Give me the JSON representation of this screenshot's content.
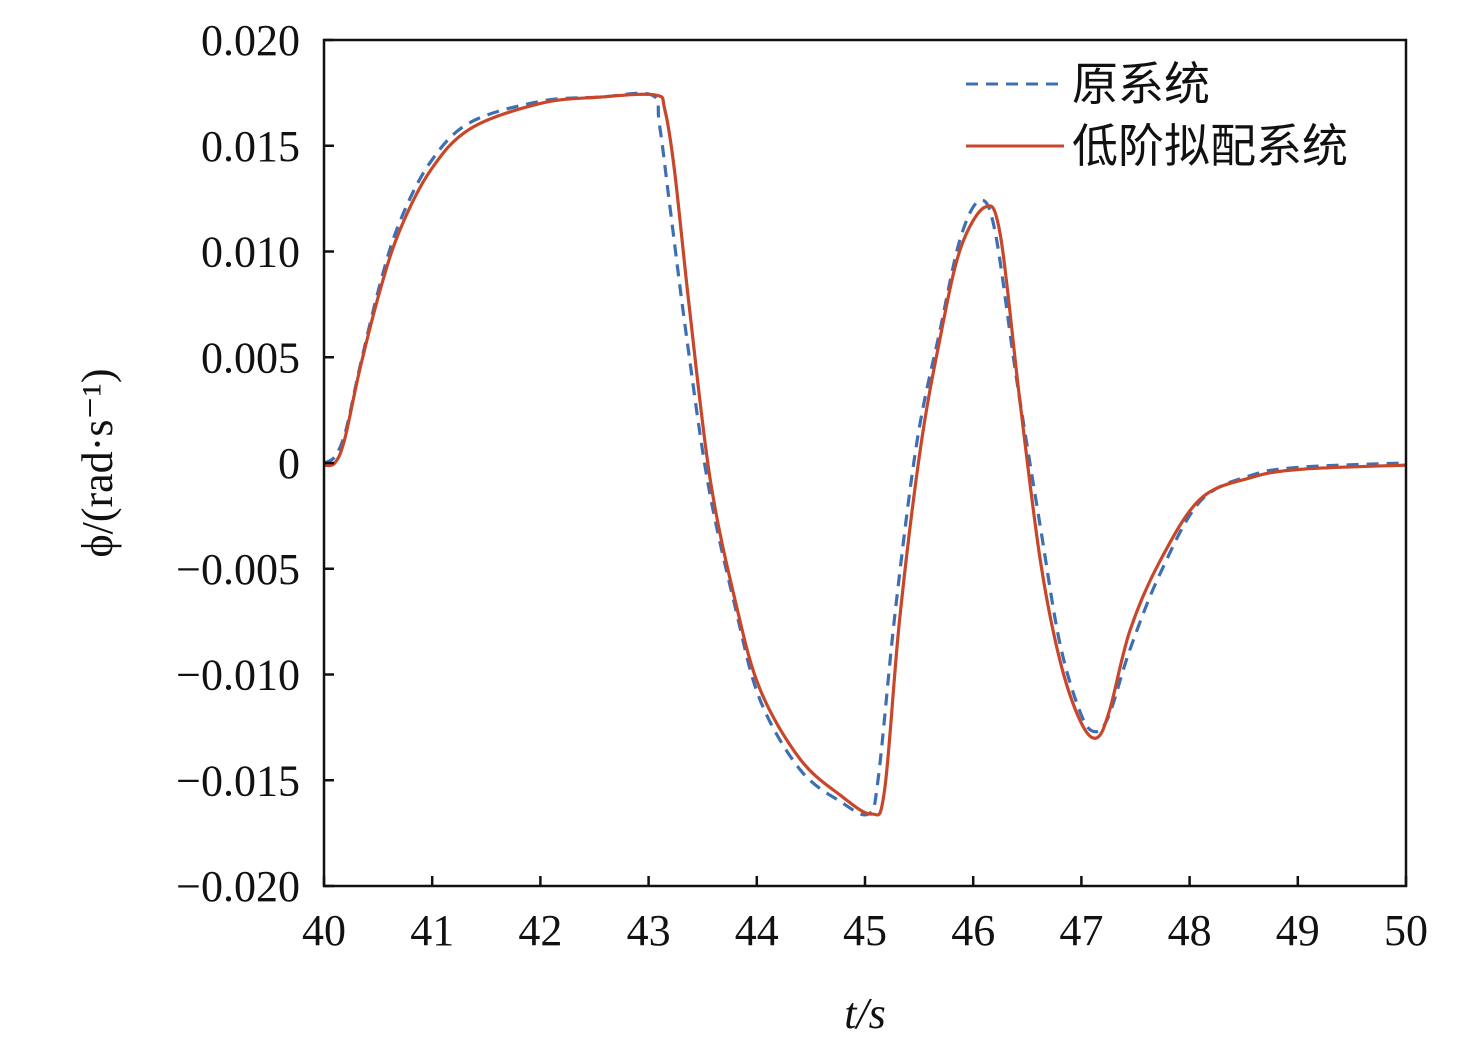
{
  "chart_data": {
    "type": "line",
    "title": "",
    "xlabel": "t/s",
    "ylabel": "ϕ/(rad·s⁻¹)",
    "xlim": [
      40,
      50
    ],
    "ylim": [
      -0.02,
      0.02
    ],
    "xticks": [
      "40",
      "41",
      "42",
      "43",
      "44",
      "45",
      "46",
      "47",
      "48",
      "49",
      "50"
    ],
    "yticks": [
      "0.020",
      "0.015",
      "0.010",
      "0.005",
      "0",
      "−0.005",
      "−0.010",
      "−0.015",
      "−0.020"
    ],
    "grid": false,
    "legend_position": "top-right",
    "series": [
      {
        "name": "原系统",
        "color": "#3d6fb5",
        "style": "dashed",
        "x": [
          40.0,
          40.1,
          40.2,
          40.33,
          40.52,
          40.7,
          40.98,
          41.35,
          42.0,
          42.55,
          43.03,
          43.1,
          43.2,
          43.35,
          43.55,
          43.8,
          44.03,
          44.4,
          44.77,
          45.03,
          45.12,
          45.28,
          45.48,
          45.69,
          45.88,
          46.06,
          46.2,
          46.4,
          46.62,
          46.8,
          46.99,
          47.12,
          47.25,
          47.45,
          47.73,
          48.1,
          48.56,
          49.02,
          50.0
        ],
        "y": [
          0.0,
          0.0003,
          0.0015,
          0.0045,
          0.0085,
          0.0114,
          0.0142,
          0.0161,
          0.0171,
          0.0173,
          0.0174,
          0.016,
          0.012,
          0.006,
          -0.001,
          -0.0068,
          -0.0112,
          -0.0145,
          -0.016,
          -0.0166,
          -0.015,
          -0.007,
          0.001,
          0.0062,
          0.0106,
          0.0124,
          0.011,
          0.004,
          -0.003,
          -0.0085,
          -0.0118,
          -0.0127,
          -0.012,
          -0.0088,
          -0.0052,
          -0.0018,
          -0.0006,
          -0.0002,
          0.0
        ]
      },
      {
        "name": "低阶拟配系统",
        "color": "#c8472a",
        "style": "solid",
        "x": [
          40.0,
          40.1,
          40.19,
          40.33,
          40.52,
          40.7,
          40.98,
          41.35,
          42.0,
          42.55,
          43.06,
          43.15,
          43.24,
          43.38,
          43.57,
          43.8,
          44.03,
          44.4,
          44.77,
          45.06,
          45.18,
          45.32,
          45.51,
          45.69,
          45.88,
          46.11,
          46.25,
          46.43,
          46.62,
          46.8,
          46.99,
          47.14,
          47.26,
          47.45,
          47.73,
          48.1,
          48.56,
          49.02,
          50.0
        ],
        "y": [
          -0.0001,
          0.0,
          0.0011,
          0.0044,
          0.0082,
          0.011,
          0.0138,
          0.0158,
          0.017,
          0.0173,
          0.0174,
          0.0167,
          0.0138,
          0.0072,
          -0.0008,
          -0.0065,
          -0.0107,
          -0.014,
          -0.0157,
          -0.0166,
          -0.0155,
          -0.0074,
          0.0006,
          0.0058,
          0.0101,
          0.0121,
          0.0108,
          0.003,
          -0.0046,
          -0.0093,
          -0.0122,
          -0.013,
          -0.0117,
          -0.0079,
          -0.0046,
          -0.0017,
          -0.0007,
          -0.0003,
          -0.0001
        ]
      }
    ]
  }
}
